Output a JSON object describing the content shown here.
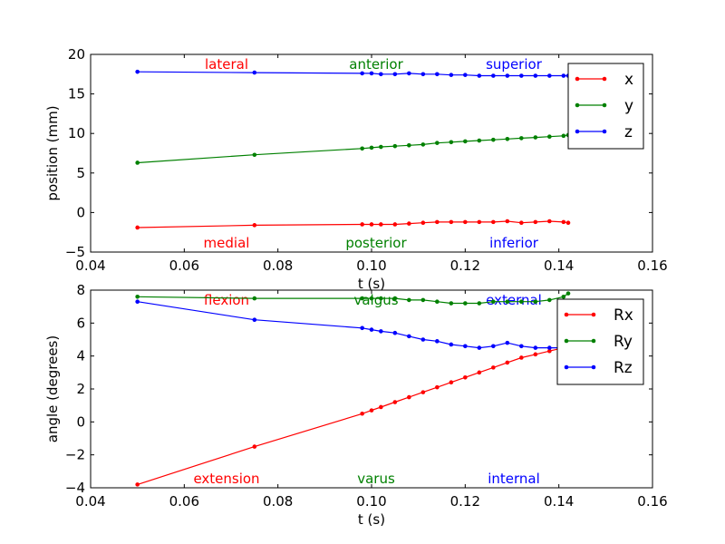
{
  "chart_data": [
    {
      "type": "line",
      "xlabel": "t (s)",
      "ylabel": "position (mm)",
      "xlim": [
        0.04,
        0.16
      ],
      "ylim": [
        -5,
        20
      ],
      "xticks": [
        "0.04",
        "0.06",
        "0.08",
        "0.10",
        "0.12",
        "0.14",
        "0.16"
      ],
      "yticks": [
        "−5",
        "0",
        "5",
        "10",
        "15",
        "20"
      ],
      "legend_position": "top-right",
      "annotations": {
        "top": [
          {
            "text": "lateral",
            "color": "#ff0000"
          },
          {
            "text": "anterior",
            "color": "#008000"
          },
          {
            "text": "superior",
            "color": "#0000ff"
          }
        ],
        "bottom": [
          {
            "text": "medial",
            "color": "#ff0000"
          },
          {
            "text": "posterior",
            "color": "#008000"
          },
          {
            "text": "inferior",
            "color": "#0000ff"
          }
        ]
      },
      "series": [
        {
          "name": "x",
          "color": "#ff0000",
          "x": [
            0.05,
            0.075,
            0.098,
            0.1,
            0.102,
            0.105,
            0.108,
            0.111,
            0.114,
            0.117,
            0.12,
            0.123,
            0.126,
            0.129,
            0.132,
            0.135,
            0.138,
            0.141,
            0.142
          ],
          "y": [
            -1.9,
            -1.6,
            -1.5,
            -1.5,
            -1.5,
            -1.5,
            -1.4,
            -1.3,
            -1.2,
            -1.2,
            -1.2,
            -1.2,
            -1.2,
            -1.1,
            -1.3,
            -1.2,
            -1.1,
            -1.2,
            -1.3
          ]
        },
        {
          "name": "y",
          "color": "#008000",
          "x": [
            0.05,
            0.075,
            0.098,
            0.1,
            0.102,
            0.105,
            0.108,
            0.111,
            0.114,
            0.117,
            0.12,
            0.123,
            0.126,
            0.129,
            0.132,
            0.135,
            0.138,
            0.141,
            0.142
          ],
          "y": [
            6.3,
            7.3,
            8.1,
            8.2,
            8.3,
            8.4,
            8.5,
            8.6,
            8.8,
            8.9,
            9.0,
            9.1,
            9.2,
            9.3,
            9.4,
            9.5,
            9.6,
            9.7,
            9.8
          ]
        },
        {
          "name": "z",
          "color": "#0000ff",
          "x": [
            0.05,
            0.075,
            0.098,
            0.1,
            0.102,
            0.105,
            0.108,
            0.111,
            0.114,
            0.117,
            0.12,
            0.123,
            0.126,
            0.129,
            0.132,
            0.135,
            0.138,
            0.141,
            0.142
          ],
          "y": [
            17.8,
            17.7,
            17.6,
            17.6,
            17.5,
            17.5,
            17.6,
            17.5,
            17.5,
            17.4,
            17.4,
            17.3,
            17.3,
            17.3,
            17.3,
            17.3,
            17.3,
            17.3,
            17.3
          ]
        }
      ]
    },
    {
      "type": "line",
      "xlabel": "t (s)",
      "ylabel": "angle (degrees)",
      "xlim": [
        0.04,
        0.16
      ],
      "ylim": [
        -4,
        8
      ],
      "xticks": [
        "0.04",
        "0.06",
        "0.08",
        "0.10",
        "0.12",
        "0.14",
        "0.16"
      ],
      "yticks": [
        "−4",
        "−2",
        "0",
        "2",
        "4",
        "6",
        "8"
      ],
      "legend_position": "top-right",
      "annotations": {
        "top": [
          {
            "text": "flexion",
            "color": "#ff0000"
          },
          {
            "text": "valgus",
            "color": "#008000"
          },
          {
            "text": "external",
            "color": "#0000ff"
          }
        ],
        "bottom": [
          {
            "text": "extension",
            "color": "#ff0000"
          },
          {
            "text": "varus",
            "color": "#008000"
          },
          {
            "text": "internal",
            "color": "#0000ff"
          }
        ]
      },
      "series": [
        {
          "name": "Rx",
          "color": "#ff0000",
          "x": [
            0.05,
            0.075,
            0.098,
            0.1,
            0.102,
            0.105,
            0.108,
            0.111,
            0.114,
            0.117,
            0.12,
            0.123,
            0.126,
            0.129,
            0.132,
            0.135,
            0.138,
            0.141,
            0.142
          ],
          "y": [
            -3.8,
            -1.5,
            0.5,
            0.7,
            0.9,
            1.2,
            1.5,
            1.8,
            2.1,
            2.4,
            2.7,
            3.0,
            3.3,
            3.6,
            3.9,
            4.1,
            4.3,
            4.5,
            4.6
          ]
        },
        {
          "name": "Ry",
          "color": "#008000",
          "x": [
            0.05,
            0.075,
            0.098,
            0.1,
            0.102,
            0.105,
            0.108,
            0.111,
            0.114,
            0.117,
            0.12,
            0.123,
            0.126,
            0.129,
            0.132,
            0.135,
            0.138,
            0.141,
            0.142
          ],
          "y": [
            7.6,
            7.5,
            7.5,
            7.5,
            7.5,
            7.5,
            7.4,
            7.4,
            7.3,
            7.2,
            7.2,
            7.2,
            7.3,
            7.3,
            7.3,
            7.3,
            7.4,
            7.6,
            7.8
          ]
        },
        {
          "name": "Rz",
          "color": "#0000ff",
          "x": [
            0.05,
            0.075,
            0.098,
            0.1,
            0.102,
            0.105,
            0.108,
            0.111,
            0.114,
            0.117,
            0.12,
            0.123,
            0.126,
            0.129,
            0.132,
            0.135,
            0.138,
            0.141,
            0.142
          ],
          "y": [
            7.3,
            6.2,
            5.7,
            5.6,
            5.5,
            5.4,
            5.2,
            5.0,
            4.9,
            4.7,
            4.6,
            4.5,
            4.6,
            4.8,
            4.6,
            4.5,
            4.5,
            4.5,
            4.4
          ]
        }
      ]
    }
  ]
}
